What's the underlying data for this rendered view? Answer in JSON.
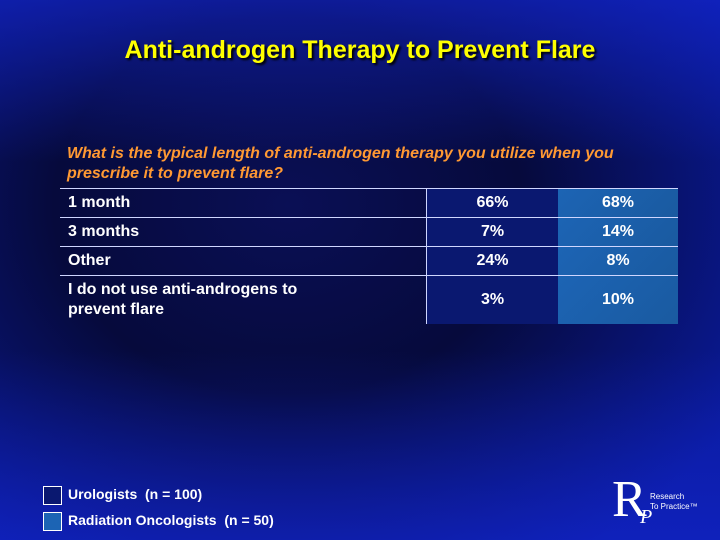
{
  "title": "Anti-androgen Therapy to Prevent Flare",
  "question": "What is the typical length of anti-androgen therapy you utilize when you prescribe it to prevent flare?",
  "table": {
    "rows": [
      [
        "1 month",
        "66%",
        "68%"
      ],
      [
        "3 months",
        "7%",
        "14%"
      ],
      [
        "Other",
        "24%",
        "8%"
      ],
      [
        "I do not use anti-androgens to prevent flare",
        "3%",
        "10%"
      ]
    ]
  },
  "legend": [
    {
      "label": "Urologists  (n = 100)"
    },
    {
      "label": "Radiation Oncologists  (n = 50)"
    }
  ],
  "logo": {
    "letter": "R",
    "sub": "P",
    "line1": "Research",
    "line2": "To Practice™"
  }
}
